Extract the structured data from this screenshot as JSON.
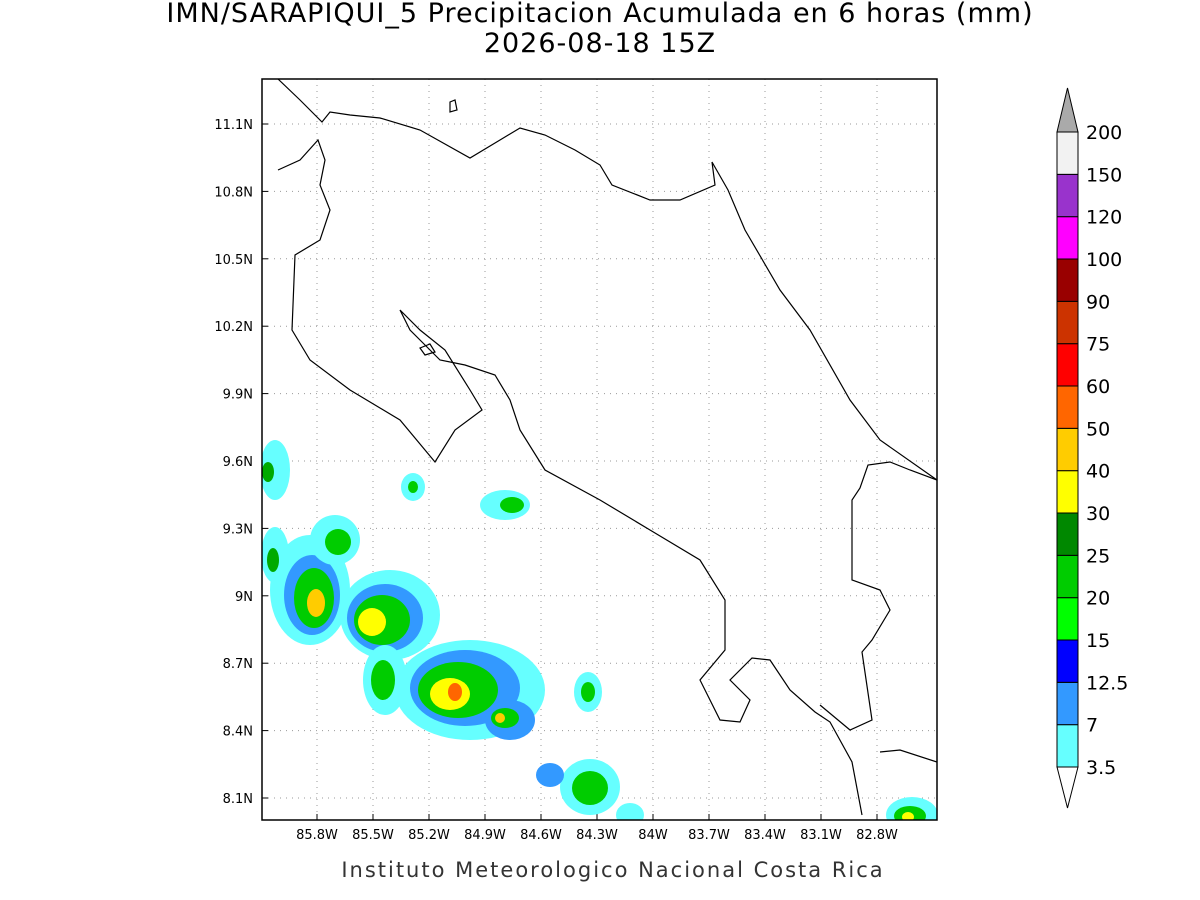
{
  "title": "IMN/SARAPIQUI_5 Precipitacion Acumulada en 6 horas (mm)",
  "subtitle": "2026-08-18 15Z",
  "map": {
    "lat_labels": [
      "11.1N",
      "10.8N",
      "10.5N",
      "10.2N",
      "9.9N",
      "9.6N",
      "9.3N",
      "9N",
      "8.7N",
      "8.4N",
      "8.1N"
    ],
    "lon_labels": [
      "85.8W",
      "85.5W",
      "85.2W",
      "84.9W",
      "84.6W",
      "84.3W",
      "84W",
      "83.7W",
      "83.4W",
      "83.1W",
      "82.8W"
    ]
  },
  "colorbar": {
    "labels": [
      "3.5",
      "7",
      "12.5",
      "15",
      "20",
      "25",
      "30",
      "40",
      "50",
      "60",
      "75",
      "90",
      "100",
      "120",
      "150",
      "200"
    ],
    "colors": [
      "#66ffff",
      "#3399ff",
      "#0000ff",
      "#00ff00",
      "#00cc00",
      "#008800",
      "#ffff00",
      "#ffcc00",
      "#ff6600",
      "#ff0000",
      "#cc3300",
      "#990000",
      "#ff00ff",
      "#9933cc",
      "#f2f2f2"
    ],
    "under_color": "#ffffff",
    "over_color": "#aaaaaa"
  },
  "credit": "Instituto Meteorologico Nacional Costa Rica"
}
